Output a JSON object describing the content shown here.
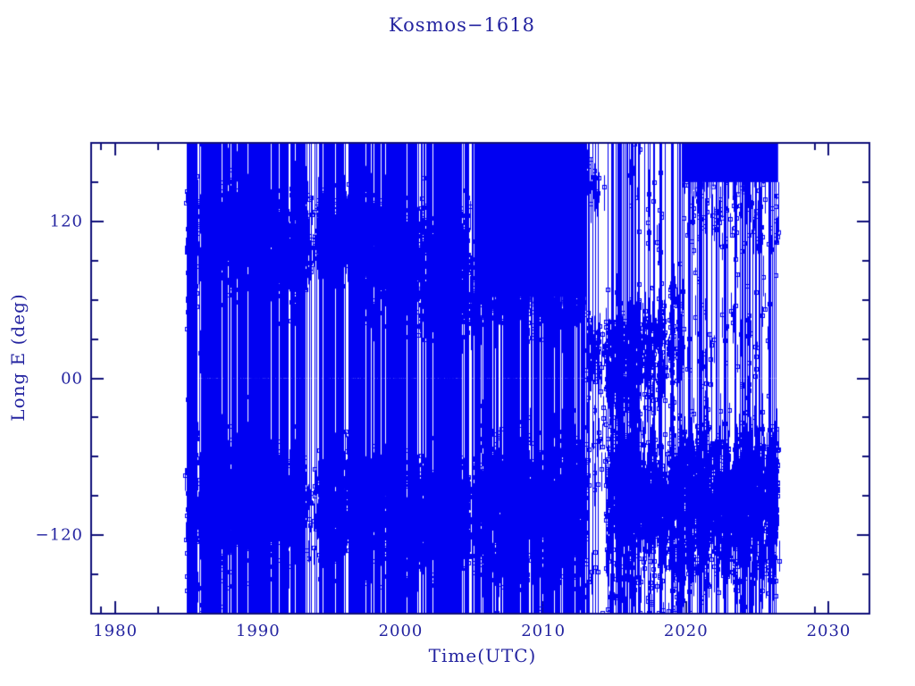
{
  "chart_data": {
    "type": "scatter",
    "title": "Kosmos−1618",
    "xlabel": "Time(UTC)",
    "ylabel": "Long E (deg)",
    "xlim": [
      1978.3,
      2032.85
    ],
    "ylim": [
      -180,
      180
    ],
    "grid": false,
    "legend": null,
    "x_major_ticks": [
      {
        "label": "1980",
        "year": 1980
      },
      {
        "label": "1990",
        "year": 1990
      },
      {
        "label": "2000",
        "year": 2000
      },
      {
        "label": "2010",
        "year": 2010
      },
      {
        "label": "2020",
        "year": 2020
      },
      {
        "label": "2030",
        "year": 2030
      }
    ],
    "x_minor_tick_years": [
      1979,
      1983,
      2029
    ],
    "y_major_ticks": [
      {
        "label": "120",
        "value": 120
      },
      {
        "label": "00",
        "value": 0
      },
      {
        "label": "−120",
        "value": -120
      }
    ],
    "y_minor_tick_values": [
      150,
      90,
      60,
      30,
      -30,
      -60,
      -90,
      -150
    ],
    "colors": {
      "background": "#ffffff",
      "axis": "#10107a",
      "text": "#2424a0",
      "data": "#0000f2"
    },
    "marker": "open-square-4px",
    "line_style": "1px vertical wrap-around connecting lines",
    "data_start_year": 1985.0,
    "data_end_year": 2026.45,
    "segments_note": "dense satellite sub-longitude scatter; each segment lists full-height line density (lines/year), solid blocks [longMin,longMax], and marker clusters [meanLong, sigma, markers/year]",
    "segments": [
      {
        "t0": 1985.0,
        "t1": 1985.55,
        "lines": 150,
        "clusters": [
          [
            100,
            35,
            150
          ],
          [
            -100,
            35,
            150
          ]
        ]
      },
      {
        "t0": 1985.55,
        "t1": 1986.7,
        "lines": 26,
        "clusters": [
          [
            105,
            30,
            70
          ],
          [
            -100,
            32,
            70
          ],
          [
            0,
            100,
            20
          ]
        ]
      },
      {
        "t0": 1986.7,
        "t1": 1988.4,
        "lines": 38,
        "clusters": [
          [
            110,
            22,
            150
          ],
          [
            -95,
            25,
            120
          ]
        ]
      },
      {
        "t0": 1988.4,
        "t1": 1990.6,
        "lines": 42,
        "clusters": [
          [
            112,
            18,
            260
          ],
          [
            -90,
            22,
            170
          ]
        ]
      },
      {
        "t0": 1990.6,
        "t1": 1993.25,
        "lines": 36,
        "clusters": [
          [
            100,
            20,
            200
          ],
          [
            -95,
            22,
            170
          ]
        ]
      },
      {
        "t0": 1993.25,
        "t1": 1994.15,
        "lines": 7,
        "clusters": [
          [
            105,
            14,
            35
          ],
          [
            -102,
            16,
            30
          ]
        ]
      },
      {
        "t0": 1994.15,
        "t1": 1996.5,
        "lines": 30,
        "clusters": [
          [
            110,
            16,
            130
          ],
          [
            -100,
            20,
            120
          ]
        ]
      },
      {
        "t0": 1996.5,
        "t1": 2000.2,
        "lines": 40,
        "clusters": [
          [
            100,
            22,
            190
          ],
          [
            -100,
            22,
            170
          ]
        ]
      },
      {
        "t0": 2000.2,
        "t1": 2004.75,
        "lines": 36,
        "clusters": [
          [
            88,
            24,
            170
          ],
          [
            -106,
            22,
            170
          ]
        ]
      },
      {
        "t0": 2004.75,
        "t1": 2005.15,
        "lines": 6,
        "clusters": [
          [
            75,
            18,
            40
          ],
          [
            -110,
            15,
            30
          ]
        ]
      },
      {
        "t0": 2005.15,
        "t1": 2013.0,
        "lines": 30,
        "blocks": [
          [
            62,
            180
          ]
        ],
        "clusters": [
          [
            -95,
            26,
            180
          ],
          [
            52,
            9,
            25
          ],
          [
            -140,
            14,
            15
          ]
        ]
      },
      {
        "t0": 2013.0,
        "t1": 2014.35,
        "lines": 4,
        "clusters": [
          [
            15,
            16,
            45
          ],
          [
            152,
            12,
            14
          ],
          [
            -50,
            25,
            14
          ],
          [
            -150,
            15,
            6
          ]
        ]
      },
      {
        "t0": 2014.35,
        "t1": 2016.05,
        "lines": 11,
        "clusters": [
          [
            12,
            20,
            120
          ],
          [
            -85,
            22,
            190
          ],
          [
            -150,
            15,
            20
          ]
        ]
      },
      {
        "t0": 2016.05,
        "t1": 2018.3,
        "lines": 9,
        "clusters": [
          [
            22,
            20,
            100
          ],
          [
            -90,
            22,
            200
          ],
          [
            130,
            25,
            10
          ],
          [
            -155,
            15,
            12
          ]
        ]
      },
      {
        "t0": 2018.3,
        "t1": 2019.75,
        "lines": 7,
        "clusters": [
          [
            28,
            25,
            55
          ],
          [
            -95,
            25,
            190
          ],
          [
            -155,
            18,
            20
          ]
        ]
      },
      {
        "t0": 2019.75,
        "t1": 2026.45,
        "lines": 8,
        "blocks": [
          [
            150,
            180
          ]
        ],
        "clusters": [
          [
            -92,
            24,
            210
          ],
          [
            128,
            14,
            12
          ],
          [
            30,
            45,
            12
          ],
          [
            -145,
            12,
            16
          ]
        ]
      }
    ]
  }
}
